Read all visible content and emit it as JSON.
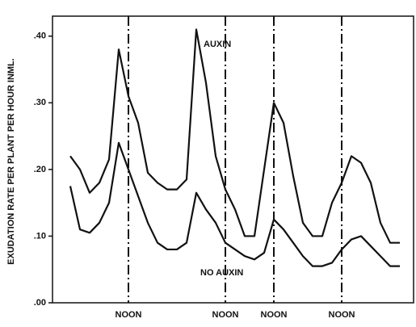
{
  "chart_data": {
    "type": "line",
    "y_label": "EXUDATION RATE PER PLANT PER HOUR INML.",
    "categories": [
      null,
      null,
      null,
      null,
      null,
      null,
      "NOON",
      null,
      null,
      null,
      null,
      null,
      null,
      null,
      null,
      null,
      "NOON",
      null,
      null,
      null,
      null,
      "NOON",
      null,
      null,
      null,
      null,
      null,
      null,
      "NOON",
      null,
      null,
      null,
      null,
      null,
      null
    ],
    "series": [
      {
        "name": "AUXIN",
        "color": "#111111",
        "values": [
          0.22,
          0.2,
          0.165,
          0.18,
          0.215,
          0.38,
          0.31,
          0.27,
          0.195,
          0.18,
          0.17,
          0.17,
          0.185,
          0.41,
          0.33,
          0.22,
          0.17,
          0.14,
          0.1,
          0.1,
          0.2,
          0.3,
          0.27,
          0.19,
          0.12,
          0.1,
          0.1,
          0.15,
          0.18,
          0.22,
          0.21,
          0.18,
          0.12,
          0.09,
          0.09
        ]
      },
      {
        "name": "NO AUXIN",
        "color": "#111111",
        "values": [
          0.175,
          0.11,
          0.105,
          0.12,
          0.15,
          0.24,
          0.2,
          0.16,
          0.12,
          0.09,
          0.08,
          0.08,
          0.09,
          0.165,
          0.14,
          0.12,
          0.09,
          0.08,
          0.07,
          0.065,
          0.075,
          0.125,
          0.11,
          0.09,
          0.07,
          0.055,
          0.055,
          0.06,
          0.08,
          0.095,
          0.1,
          0.085,
          0.07,
          0.055,
          0.055
        ]
      }
    ],
    "ylim": [
      0,
      0.43
    ],
    "yticks": [
      {
        "value": 0,
        "label": ".00"
      },
      {
        "value": 0.1,
        "label": ".10"
      },
      {
        "value": 0.2,
        "label": ".20"
      },
      {
        "value": 0.3,
        "label": ".30"
      },
      {
        "value": 0.4,
        "label": ".40"
      }
    ],
    "grid": false
  }
}
